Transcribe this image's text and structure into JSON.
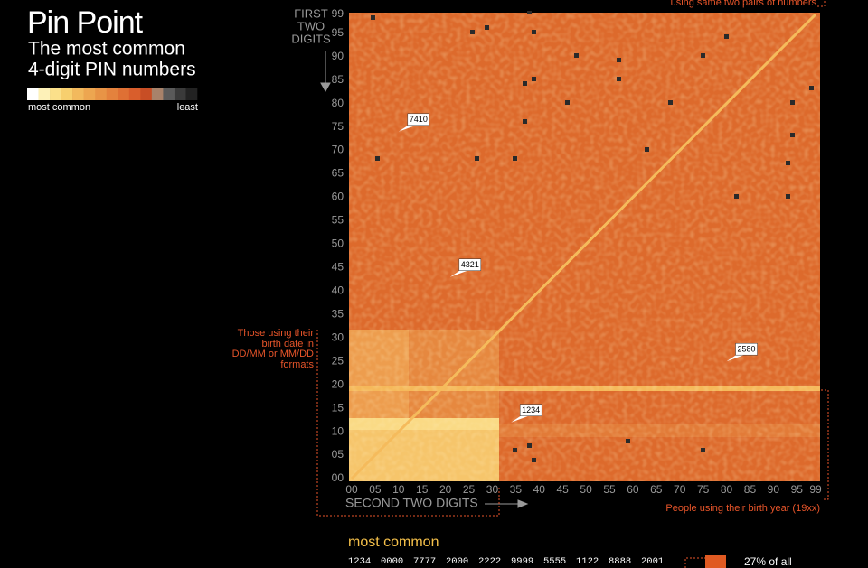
{
  "chart_data": {
    "type": "heatmap",
    "title": "Pin Point",
    "subtitle": [
      "The most common",
      "4-digit PIN numbers"
    ],
    "legend": {
      "colors": [
        "#ffffff",
        "#fdf1b8",
        "#fbe08a",
        "#f7cf6e",
        "#f2b95d",
        "#eda650",
        "#e89446",
        "#e4823d",
        "#df7034",
        "#d95e2c",
        "#c84e25",
        "#a8826a",
        "#5a5a5a",
        "#3a3a3a",
        "#222222"
      ],
      "labels": [
        "most common",
        "least"
      ]
    },
    "color": "#dd6a2c",
    "y_label": [
      "FIRST",
      "TWO",
      "DIGITS"
    ],
    "x_label": "SECOND TWO DIGITS",
    "xlim": [
      0,
      99
    ],
    "ylim": [
      0,
      99
    ],
    "xticks": [
      {
        "value": 0,
        "label": "00"
      },
      {
        "value": 5,
        "label": "05"
      },
      10,
      15,
      20,
      25,
      30,
      35,
      40,
      45,
      50,
      55,
      60,
      65,
      70,
      75,
      80,
      85,
      90,
      95,
      99
    ],
    "yticks": [
      {
        "value": 0,
        "label": "00"
      },
      {
        "value": 5,
        "label": "05"
      },
      10,
      15,
      20,
      25,
      30,
      35,
      40,
      45,
      50,
      55,
      60,
      65,
      70,
      75,
      80,
      85,
      90,
      95,
      99
    ],
    "callouts": [
      "7410",
      "4321",
      "2580",
      "1234"
    ],
    "annotations": {
      "top_right": "using same two pairs of numbers",
      "left": [
        "Those using their",
        "birth date in",
        "DD/MM or MM/DD",
        "formats"
      ],
      "bottom_right": "People using their birth year (19xx)"
    },
    "most_common": {
      "title": "most common",
      "pins": [
        "1234",
        "0000",
        "7777",
        "2000",
        "2222",
        "9999",
        "5555",
        "1122",
        "8888",
        "2001"
      ],
      "share_label": "27% of all",
      "share_color": "#e05a22"
    }
  }
}
